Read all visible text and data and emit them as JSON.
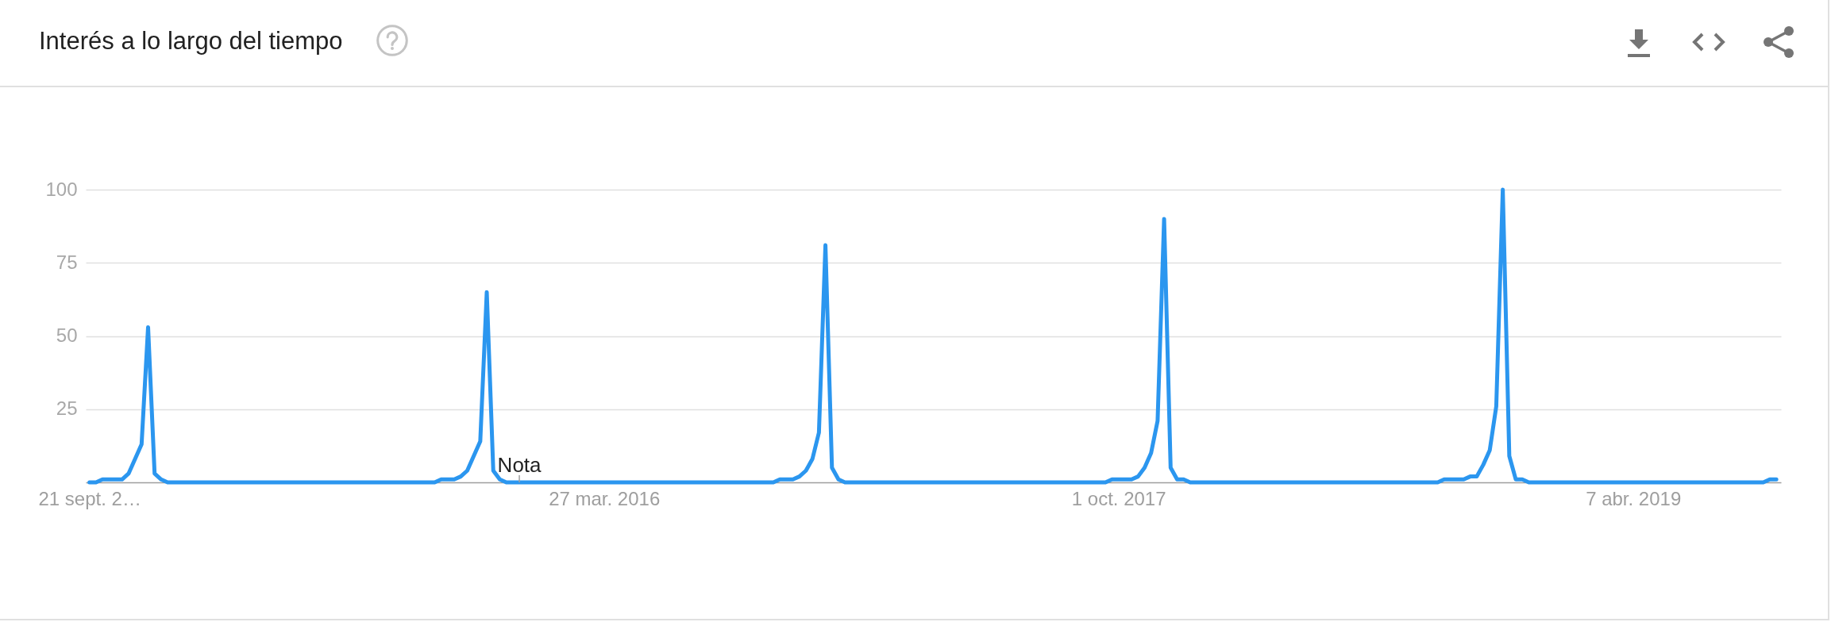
{
  "chart_data": {
    "type": "line",
    "title": "Interés a lo largo del tiempo",
    "x": [
      "2014-09-21",
      "2014-09-28",
      "2014-10-05",
      "2014-10-26",
      "2014-11-02",
      "2014-11-09",
      "2014-11-16",
      "2014-11-23",
      "2014-11-30",
      "2014-12-07",
      "2014-12-14",
      "2015-09-27",
      "2015-10-04",
      "2015-10-18",
      "2015-10-25",
      "2015-11-01",
      "2015-11-08",
      "2015-11-15",
      "2015-11-22",
      "2015-11-29",
      "2015-12-06",
      "2015-12-13",
      "2016-09-25",
      "2016-10-02",
      "2016-10-16",
      "2016-10-23",
      "2016-10-30",
      "2016-11-06",
      "2016-11-13",
      "2016-11-20",
      "2016-11-27",
      "2016-12-04",
      "2016-12-11",
      "2017-09-17",
      "2017-09-24",
      "2017-10-15",
      "2017-10-22",
      "2017-10-29",
      "2017-11-05",
      "2017-11-12",
      "2017-11-19",
      "2017-11-26",
      "2017-12-03",
      "2017-12-10",
      "2017-12-17",
      "2018-09-09",
      "2018-09-16",
      "2018-10-07",
      "2018-10-14",
      "2018-10-21",
      "2018-10-28",
      "2018-11-04",
      "2018-11-11",
      "2018-11-18",
      "2018-11-25",
      "2018-12-02",
      "2018-12-09",
      "2018-12-16",
      "2019-08-25",
      "2019-09-01",
      "2019-09-08"
    ],
    "values": [
      0,
      0,
      1,
      1,
      3,
      8,
      13,
      53,
      3,
      1,
      0,
      0,
      1,
      1,
      2,
      4,
      9,
      14,
      65,
      4,
      1,
      0,
      0,
      1,
      1,
      2,
      4,
      8,
      17,
      81,
      5,
      1,
      0,
      0,
      1,
      1,
      2,
      5,
      10,
      21,
      90,
      5,
      1,
      1,
      0,
      0,
      1,
      1,
      2,
      2,
      6,
      11,
      26,
      100,
      9,
      1,
      1,
      0,
      0,
      1,
      1
    ],
    "color": "#2b96ef",
    "xlim": [
      "2014-09-17",
      "2019-09-13"
    ],
    "xticks": [
      {
        "value": "2014-09-21",
        "label": "21 sept. 2…"
      },
      {
        "value": "2016-03-27",
        "label": "27 mar. 2016"
      },
      {
        "value": "2017-10-01",
        "label": "1 oct. 2017"
      },
      {
        "value": "2019-04-07",
        "label": "7 abr. 2019"
      }
    ],
    "ylim": [
      0,
      100
    ],
    "yticks": [
      25,
      50,
      75,
      100
    ],
    "grid": "y",
    "line_style": "solid",
    "annotations": [
      {
        "text": "Nota",
        "x": "2015-12-27",
        "y": 0
      }
    ]
  }
}
